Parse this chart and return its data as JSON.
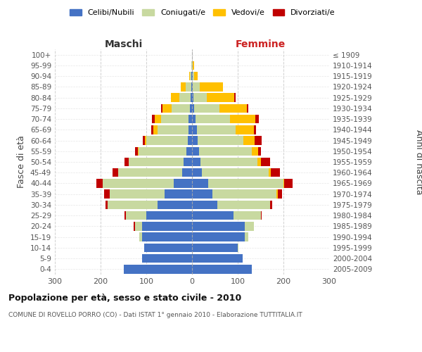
{
  "age_groups": [
    "100+",
    "95-99",
    "90-94",
    "85-89",
    "80-84",
    "75-79",
    "70-74",
    "65-69",
    "60-64",
    "55-59",
    "50-54",
    "45-49",
    "40-44",
    "35-39",
    "30-34",
    "25-29",
    "20-24",
    "15-19",
    "10-14",
    "5-9",
    "0-4"
  ],
  "birth_years": [
    "≤ 1909",
    "1910-1914",
    "1915-1919",
    "1920-1924",
    "1925-1929",
    "1930-1934",
    "1935-1939",
    "1940-1944",
    "1945-1949",
    "1950-1954",
    "1955-1959",
    "1960-1964",
    "1965-1969",
    "1970-1974",
    "1975-1979",
    "1980-1984",
    "1985-1989",
    "1990-1994",
    "1995-1999",
    "2000-2004",
    "2005-2009"
  ],
  "maschi": {
    "celibi": [
      0,
      0,
      1,
      2,
      3,
      5,
      7,
      8,
      10,
      12,
      18,
      22,
      40,
      60,
      75,
      100,
      110,
      110,
      105,
      110,
      150
    ],
    "coniugati": [
      0,
      1,
      3,
      12,
      25,
      40,
      60,
      68,
      90,
      105,
      120,
      140,
      155,
      120,
      110,
      45,
      15,
      5,
      0,
      0,
      0
    ],
    "vedovi": [
      0,
      0,
      2,
      10,
      18,
      20,
      15,
      8,
      3,
      2,
      1,
      0,
      0,
      0,
      0,
      0,
      0,
      0,
      0,
      0,
      0
    ],
    "divorziati": [
      0,
      0,
      0,
      0,
      0,
      3,
      5,
      5,
      5,
      5,
      8,
      12,
      15,
      12,
      5,
      2,
      2,
      0,
      0,
      0,
      0
    ]
  },
  "femmine": {
    "nubili": [
      0,
      0,
      1,
      2,
      3,
      5,
      8,
      10,
      12,
      15,
      18,
      22,
      35,
      45,
      55,
      90,
      115,
      115,
      100,
      110,
      130
    ],
    "coniugate": [
      0,
      1,
      3,
      15,
      30,
      55,
      75,
      85,
      100,
      115,
      125,
      145,
      165,
      140,
      115,
      60,
      20,
      8,
      2,
      0,
      0
    ],
    "vedove": [
      0,
      3,
      8,
      50,
      60,
      60,
      55,
      40,
      25,
      15,
      8,
      5,
      2,
      2,
      1,
      0,
      0,
      0,
      0,
      0,
      0
    ],
    "divorziate": [
      0,
      0,
      0,
      0,
      2,
      3,
      8,
      5,
      15,
      5,
      20,
      20,
      18,
      10,
      5,
      2,
      0,
      0,
      0,
      0,
      0
    ]
  },
  "colors": {
    "celibi_nubili": "#4472c4",
    "coniugati": "#c8d9a0",
    "vedovi": "#ffc000",
    "divorziati": "#c00000"
  },
  "xlim": 300,
  "title": "Popolazione per età, sesso e stato civile - 2010",
  "subtitle": "COMUNE DI ROVELLO PORRO (CO) - Dati ISTAT 1° gennaio 2010 - Elaborazione TUTTITALIA.IT",
  "ylabel_left": "Fasce di età",
  "ylabel_right": "Anni di nascita",
  "label_maschi": "Maschi",
  "label_femmine": "Femmine",
  "legend": [
    "Celibi/Nubili",
    "Coniugati/e",
    "Vedovi/e",
    "Divorziati/e"
  ],
  "bg_color": "#ffffff",
  "grid_color": "#cccccc"
}
